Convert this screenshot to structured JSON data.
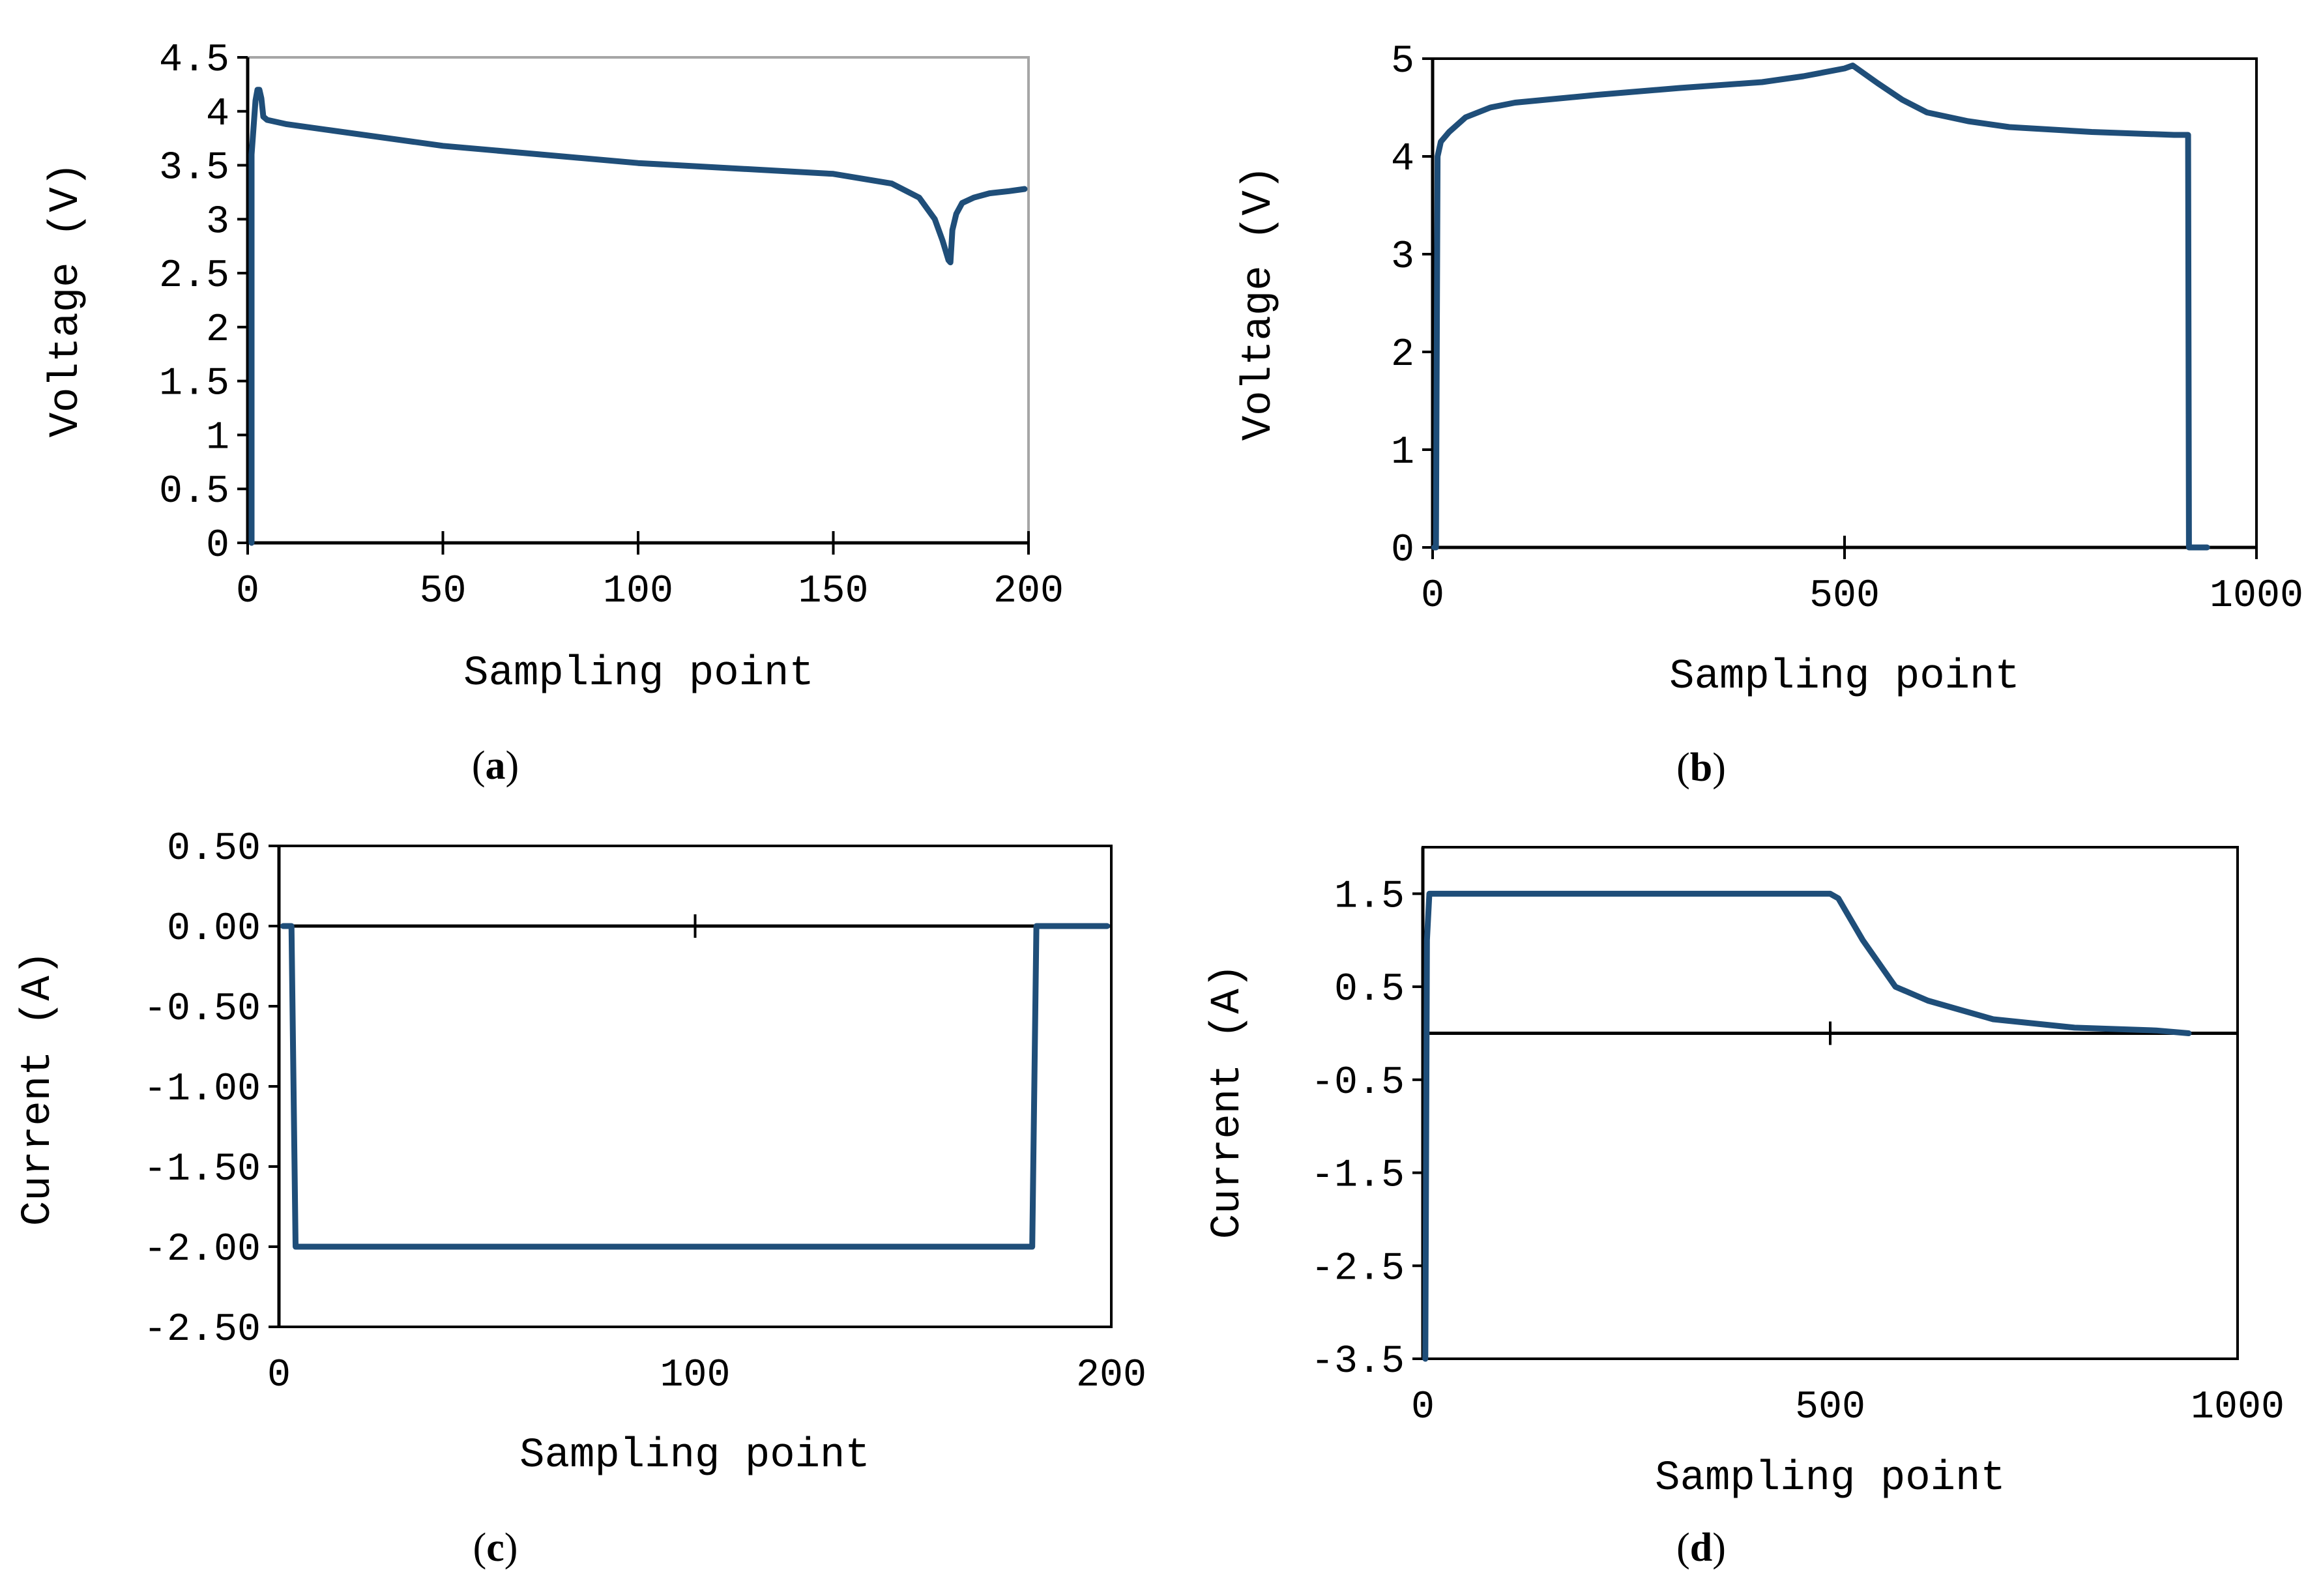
{
  "colors": {
    "series": "#1f4e79",
    "axis": "#000000",
    "frame_a": "#a6a6a6"
  },
  "chart_data": [
    {
      "id": "a",
      "panel_label": "a",
      "type": "line",
      "xlabel": "Sampling point",
      "ylabel": "Voltage (V)",
      "xlim": [
        0,
        200
      ],
      "ylim": [
        0,
        4.5
      ],
      "xticks": [
        0,
        50,
        100,
        150,
        200
      ],
      "yticks": [
        0,
        0.5,
        1,
        1.5,
        2,
        2.5,
        3,
        3.5,
        4,
        4.5
      ],
      "xtick_labels": [
        "0",
        "50",
        "100",
        "150",
        "200"
      ],
      "ytick_labels": [
        "0",
        "0.5",
        "1",
        "1.5",
        "2",
        "2.5",
        "3",
        "3.5",
        "4",
        "4.5"
      ],
      "series": [
        {
          "name": "Voltage",
          "x": [
            1,
            1,
            2,
            2.5,
            3,
            3.5,
            4,
            5,
            10,
            20,
            50,
            100,
            150,
            165,
            172,
            176,
            178,
            179.5,
            180,
            180.5,
            181.5,
            183,
            186,
            190,
            195,
            199
          ],
          "y": [
            0,
            3.6,
            4.1,
            4.2,
            4.2,
            4.12,
            3.95,
            3.92,
            3.88,
            3.83,
            3.68,
            3.52,
            3.42,
            3.33,
            3.2,
            3.0,
            2.8,
            2.62,
            2.6,
            2.9,
            3.05,
            3.15,
            3.2,
            3.24,
            3.26,
            3.28
          ]
        }
      ]
    },
    {
      "id": "b",
      "panel_label": "b",
      "type": "line",
      "xlabel": "Sampling point",
      "ylabel": "Voltage (V)",
      "xlim": [
        0,
        1000
      ],
      "ylim": [
        0,
        5
      ],
      "xticks": [
        0,
        500,
        1000
      ],
      "yticks": [
        0,
        1,
        2,
        3,
        4,
        5
      ],
      "xtick_labels": [
        "0",
        "500",
        "1000"
      ],
      "ytick_labels": [
        "0",
        "1",
        "2",
        "3",
        "4",
        "5"
      ],
      "series": [
        {
          "name": "Voltage",
          "x": [
            2,
            4,
            6,
            10,
            20,
            40,
            70,
            100,
            200,
            300,
            400,
            450,
            500,
            510,
            540,
            570,
            600,
            650,
            700,
            800,
            900,
            917,
            918,
            920,
            940
          ],
          "y": [
            0,
            0,
            4.0,
            4.15,
            4.25,
            4.4,
            4.5,
            4.55,
            4.63,
            4.7,
            4.76,
            4.82,
            4.9,
            4.93,
            4.75,
            4.58,
            4.45,
            4.36,
            4.3,
            4.25,
            4.22,
            4.22,
            0,
            0,
            0
          ]
        }
      ]
    },
    {
      "id": "c",
      "panel_label": "c",
      "type": "line",
      "xlabel": "Sampling point",
      "ylabel": "Current (A)",
      "xlim": [
        0,
        200
      ],
      "ylim": [
        -2.5,
        0.5
      ],
      "xticks": [
        0,
        100,
        200
      ],
      "yticks": [
        -2.5,
        -2.0,
        -1.5,
        -1.0,
        -0.5,
        0.0,
        0.5
      ],
      "xtick_labels": [
        "0",
        "100",
        "200"
      ],
      "ytick_labels": [
        "-2.50",
        "-2.00",
        "-1.50",
        "-1.00",
        "-0.50",
        "0.00",
        "0.50"
      ],
      "series": [
        {
          "name": "Current",
          "x": [
            1,
            3,
            4,
            180,
            181,
            182,
            199
          ],
          "y": [
            0,
            0,
            -2.0,
            -2.0,
            -2.0,
            0,
            0
          ]
        }
      ]
    },
    {
      "id": "d",
      "panel_label": "d",
      "type": "line",
      "xlabel": "Sampling point",
      "ylabel": "Current (A)",
      "xlim": [
        0,
        1000
      ],
      "ylim": [
        -3.5,
        2
      ],
      "xticks": [
        0,
        500,
        1000
      ],
      "yticks": [
        -3.5,
        -2.5,
        -1.5,
        -0.5,
        0.5,
        1.5
      ],
      "xtick_labels": [
        "0",
        "500",
        "1000"
      ],
      "ytick_labels": [
        "-3.5",
        "-2.5",
        "-1.5",
        "-0.5",
        "0.5",
        "1.5"
      ],
      "series": [
        {
          "name": "Current",
          "x": [
            3,
            5,
            8,
            100,
            300,
            500,
            510,
            540,
            580,
            620,
            700,
            800,
            900,
            940
          ],
          "y": [
            -3.5,
            1.0,
            1.5,
            1.5,
            1.5,
            1.5,
            1.45,
            1.0,
            0.5,
            0.35,
            0.15,
            0.06,
            0.03,
            0.0
          ]
        }
      ]
    }
  ]
}
